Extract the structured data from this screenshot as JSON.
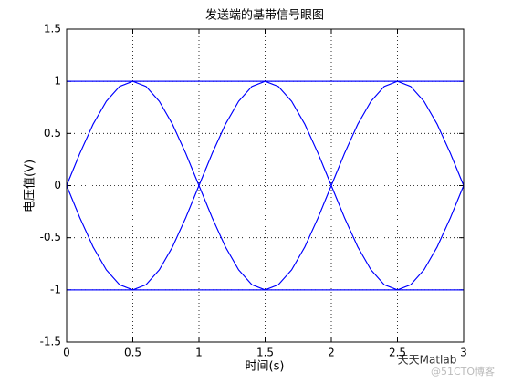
{
  "chart_data": {
    "type": "line",
    "title": "发送端的基带信号眼图",
    "xlabel": "时间(s)",
    "ylabel": "电压值(V)",
    "x": [
      0,
      0.1,
      0.2,
      0.3,
      0.4,
      0.5,
      0.6,
      0.7,
      0.8,
      0.9,
      1,
      1.1,
      1.2,
      1.3,
      1.4,
      1.5,
      1.6,
      1.7,
      1.8,
      1.9,
      2,
      2.1,
      2.2,
      2.3,
      2.4,
      2.5,
      2.6,
      2.7,
      2.8,
      2.9,
      3
    ],
    "series": [
      {
        "color": "#0000ff",
        "values": [
          0,
          0.309,
          0.588,
          0.809,
          0.951,
          1,
          0.951,
          0.809,
          0.588,
          0.309,
          0,
          -0.309,
          -0.588,
          -0.809,
          -0.951,
          -1,
          -0.951,
          -0.809,
          -0.588,
          -0.309,
          0,
          0.309,
          0.588,
          0.809,
          0.951,
          1,
          0.951,
          0.809,
          0.588,
          0.309,
          0
        ]
      },
      {
        "color": "#0000ff",
        "values": [
          0,
          -0.309,
          -0.588,
          -0.809,
          -0.951,
          -1,
          -0.951,
          -0.809,
          -0.588,
          -0.309,
          0,
          0.309,
          0.588,
          0.809,
          0.951,
          1,
          0.951,
          0.809,
          0.588,
          0.309,
          0,
          -0.309,
          -0.588,
          -0.809,
          -0.951,
          -1,
          -0.951,
          -0.809,
          -0.588,
          -0.309,
          0
        ]
      },
      {
        "color": "#0000ff",
        "values": [
          1,
          1,
          1,
          1,
          1,
          1,
          1,
          1,
          1,
          1,
          1,
          1,
          1,
          1,
          1,
          1,
          1,
          1,
          1,
          1,
          1,
          1,
          1,
          1,
          1,
          1,
          1,
          1,
          1,
          1,
          1
        ]
      },
      {
        "color": "#0000ff",
        "values": [
          -1,
          -1,
          -1,
          -1,
          -1,
          -1,
          -1,
          -1,
          -1,
          -1,
          -1,
          -1,
          -1,
          -1,
          -1,
          -1,
          -1,
          -1,
          -1,
          -1,
          -1,
          -1,
          -1,
          -1,
          -1,
          -1,
          -1,
          -1,
          -1,
          -1,
          -1
        ]
      },
      {
        "color": "#0000ff",
        "values": [
          0,
          0.309,
          0.588,
          0.809,
          0.951,
          1,
          1,
          1,
          1,
          1,
          1,
          1,
          1,
          1,
          1,
          1,
          0.951,
          0.809,
          0.588,
          0.309,
          0,
          -0.309,
          -0.588,
          -0.809,
          -0.951,
          -1,
          -1,
          -1,
          -1,
          -1,
          -1
        ]
      },
      {
        "color": "#0000ff",
        "values": [
          0,
          -0.309,
          -0.588,
          -0.809,
          -0.951,
          -1,
          -1,
          -1,
          -1,
          -1,
          -1,
          -1,
          -1,
          -1,
          -1,
          -1,
          -0.951,
          -0.809,
          -0.588,
          -0.309,
          0,
          0.309,
          0.588,
          0.809,
          0.951,
          1,
          1,
          1,
          1,
          1,
          1
        ]
      },
      {
        "color": "#0000ff",
        "values": [
          1,
          1,
          1,
          1,
          1,
          1,
          0.951,
          0.809,
          0.588,
          0.309,
          0,
          -0.309,
          -0.588,
          -0.809,
          -0.951,
          -1,
          -1,
          -1,
          -1,
          -1,
          -1,
          -1,
          -1,
          -1,
          -1,
          -1,
          -0.951,
          -0.809,
          -0.588,
          -0.309,
          0
        ]
      },
      {
        "color": "#0000ff",
        "values": [
          -1,
          -1,
          -1,
          -1,
          -1,
          -1,
          -0.951,
          -0.809,
          -0.588,
          -0.309,
          0,
          0.309,
          0.588,
          0.809,
          0.951,
          1,
          1,
          1,
          1,
          1,
          1,
          1,
          1,
          1,
          1,
          1,
          0.951,
          0.809,
          0.588,
          0.309,
          0
        ]
      }
    ],
    "xlim": [
      0,
      3
    ],
    "xticks": [
      0,
      0.5,
      1,
      1.5,
      2,
      2.5,
      3
    ],
    "ylim": [
      -1.5,
      1.5
    ],
    "yticks": [
      -1.5,
      -1,
      -0.5,
      0,
      0.5,
      1,
      1.5
    ],
    "grid": true
  },
  "watermark": {
    "brand": "天天Matlab",
    "site": "@51CTO博客"
  }
}
